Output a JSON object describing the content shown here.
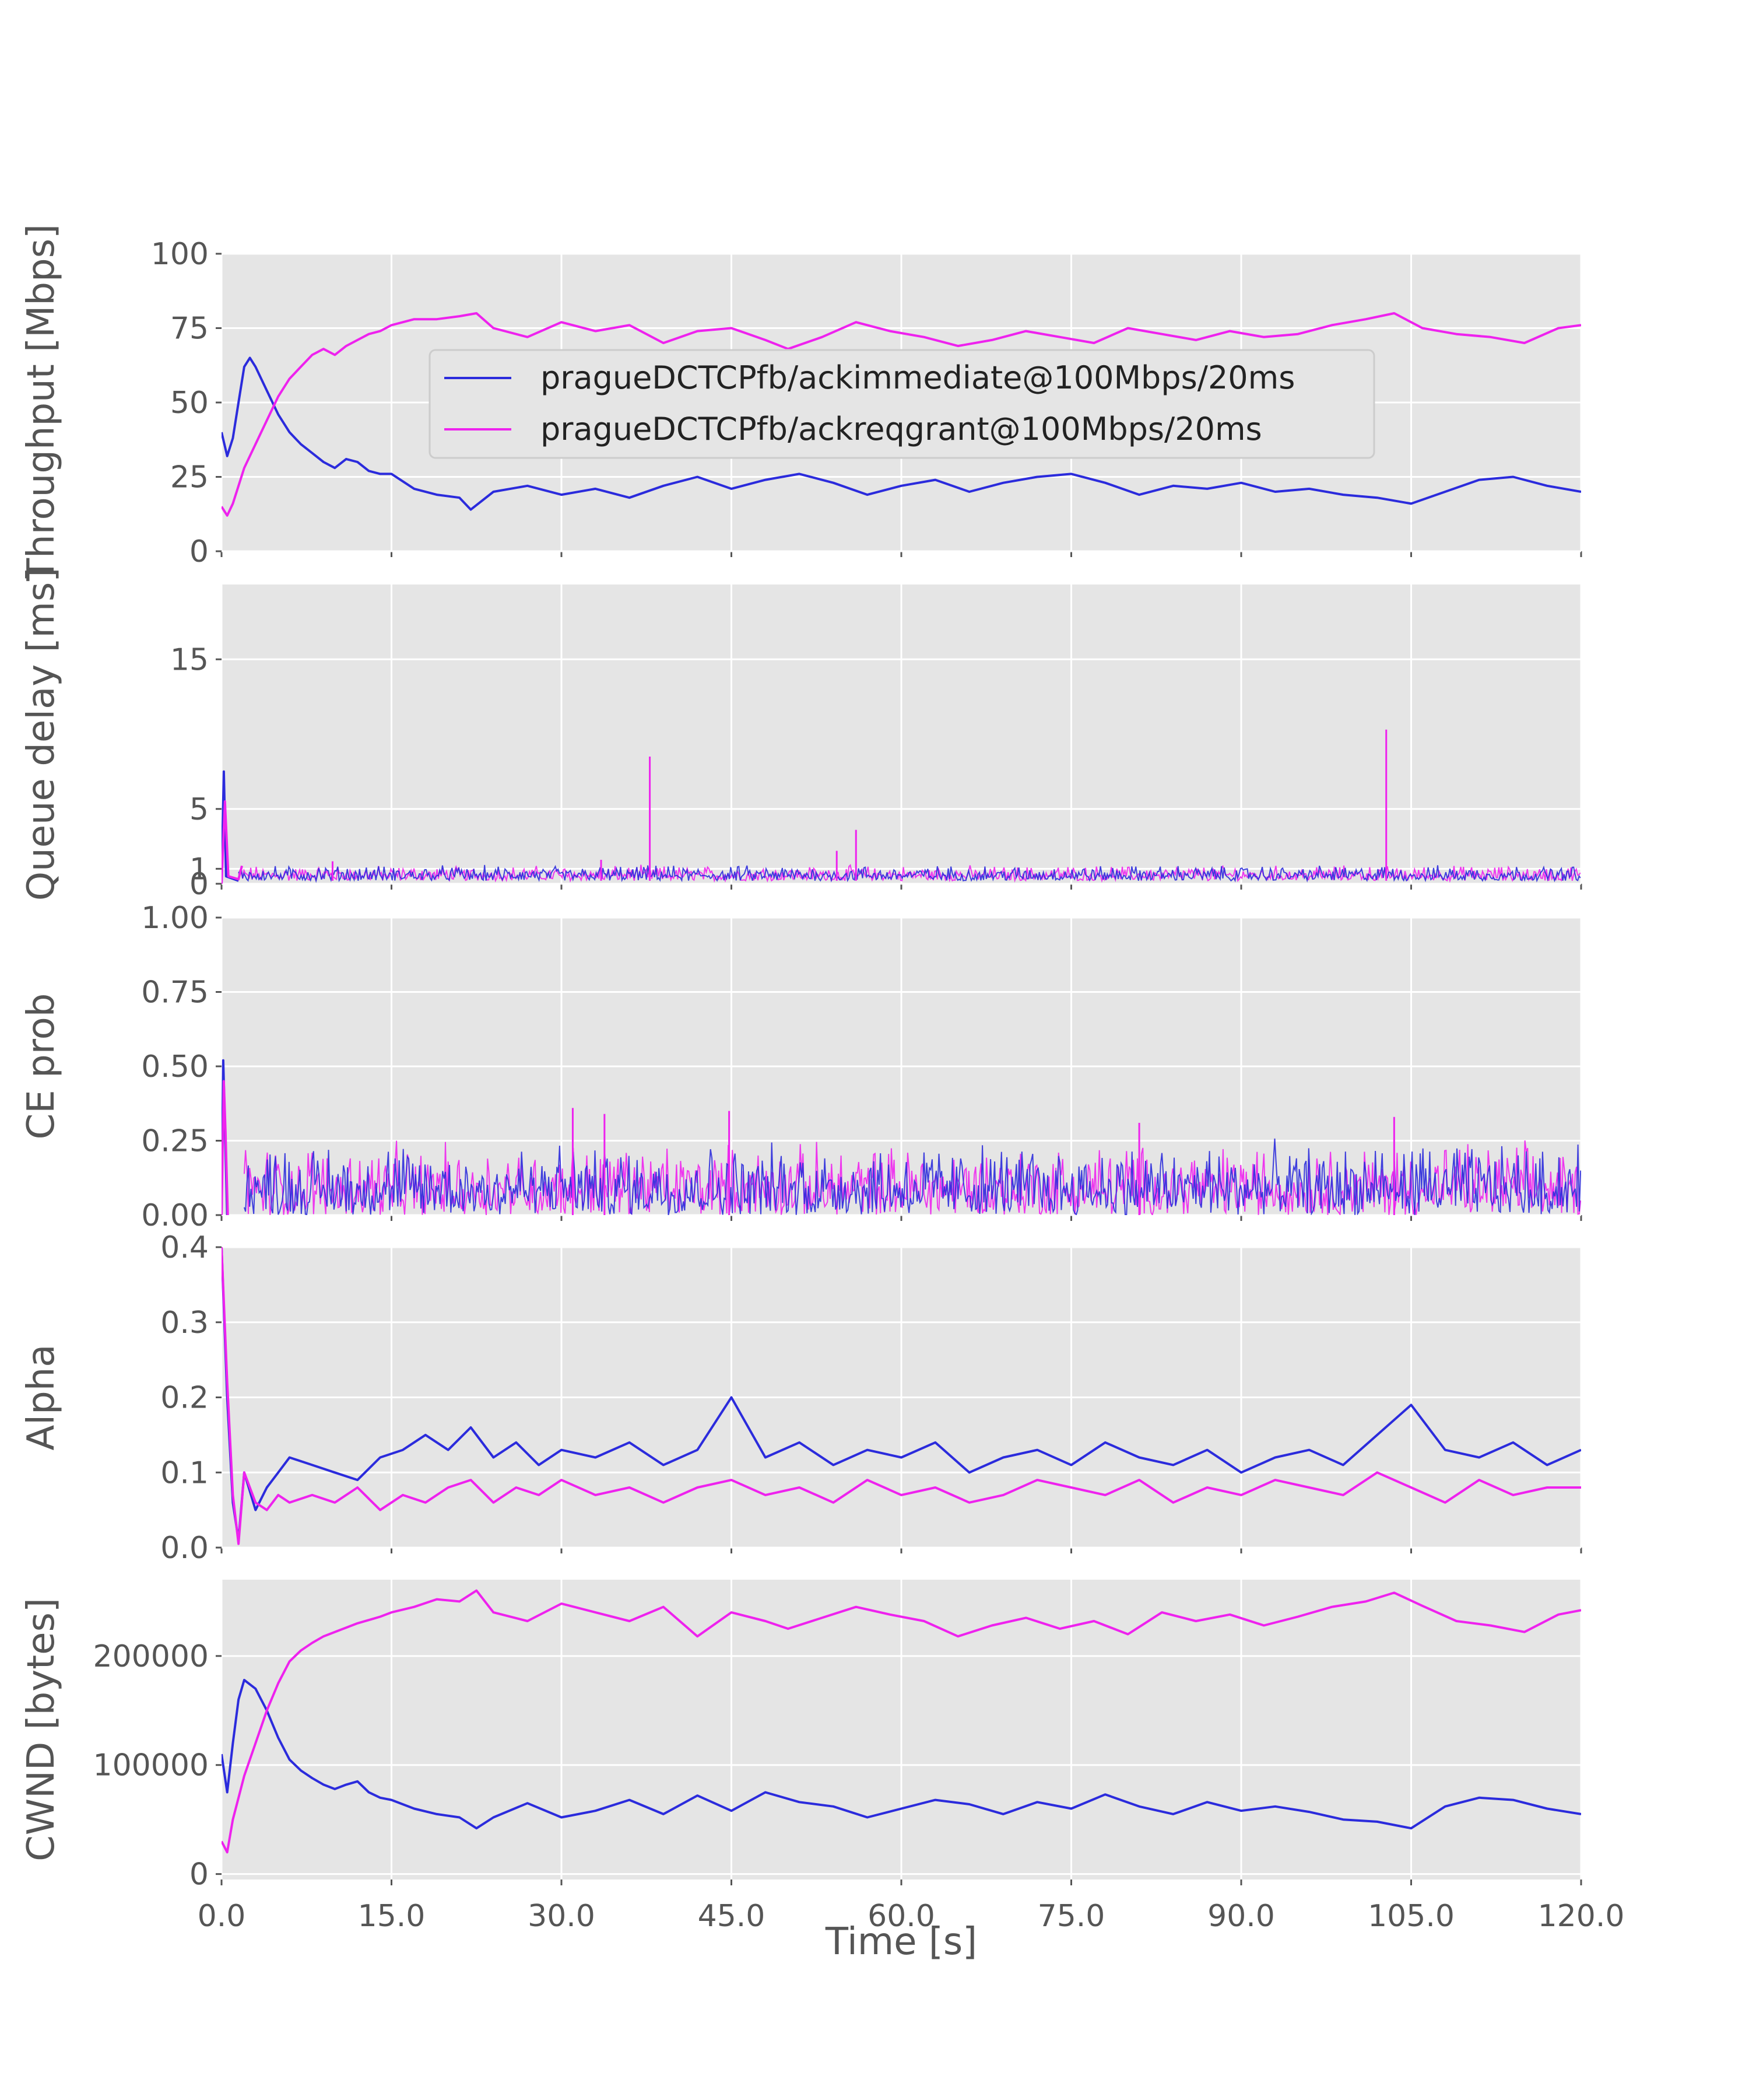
{
  "figure": {
    "xlabel": "Time [s]",
    "x_ticks": [
      "0.0",
      "15.0",
      "30.0",
      "45.0",
      "60.0",
      "75.0",
      "90.0",
      "105.0",
      "120.0"
    ],
    "xlim": [
      0,
      120
    ]
  },
  "legend": {
    "placement": "upper-center of top panel",
    "entries": [
      {
        "label": "pragueDCTCPfb/ackimmediate@100Mbps/20ms",
        "color": "#2b2bdc"
      },
      {
        "label": "pragueDCTCPfb/ackreqgrant@100Mbps/20ms",
        "color": "#ee22ee"
      }
    ]
  },
  "colors": {
    "series_1": "#2b2bdc",
    "series_2": "#ee22ee",
    "panel_bg": "#e5e5e5",
    "grid": "#ffffff",
    "text": "#555555"
  },
  "chart_data": [
    {
      "type": "line",
      "ylabel": "Throughput [Mbps]",
      "ylim": [
        0,
        100
      ],
      "yticks": [
        0,
        25,
        50,
        75,
        100
      ],
      "ytick_labels": [
        "0",
        "25",
        "50",
        "75",
        "100"
      ],
      "grid": true,
      "series": [
        {
          "name": "pragueDCTCPfb/ackimmediate@100Mbps/20ms",
          "x": [
            0,
            0.5,
            1,
            1.5,
            2,
            2.5,
            3,
            4,
            5,
            6,
            7,
            8,
            9,
            10,
            11,
            12,
            13,
            14,
            15,
            17,
            19,
            21,
            22,
            24,
            27,
            30,
            33,
            36,
            39,
            42,
            45,
            48,
            51,
            54,
            57,
            60,
            63,
            66,
            69,
            72,
            75,
            78,
            81,
            84,
            87,
            90,
            93,
            96,
            99,
            102,
            105,
            108,
            111,
            114,
            117,
            120
          ],
          "y": [
            40,
            32,
            38,
            50,
            62,
            65,
            62,
            54,
            46,
            40,
            36,
            33,
            30,
            28,
            31,
            30,
            27,
            26,
            26,
            21,
            19,
            18,
            14,
            20,
            22,
            19,
            21,
            18,
            22,
            25,
            21,
            24,
            26,
            23,
            19,
            22,
            24,
            20,
            23,
            25,
            26,
            23,
            19,
            22,
            21,
            23,
            20,
            21,
            19,
            18,
            16,
            20,
            24,
            25,
            22,
            20
          ]
        },
        {
          "name": "pragueDCTCPfb/ackreqgrant@100Mbps/20ms",
          "x": [
            0,
            0.5,
            1,
            2,
            3,
            4,
            5,
            6,
            7,
            8,
            9,
            10,
            11,
            12,
            13,
            14,
            15,
            17,
            19,
            21,
            22.5,
            24,
            27,
            30,
            33,
            36,
            39,
            42,
            45,
            48,
            50,
            53,
            56,
            59,
            62,
            65,
            68,
            71,
            74,
            77,
            80,
            83,
            86,
            89,
            92,
            95,
            98,
            101,
            103.5,
            106,
            109,
            112,
            115,
            118,
            120
          ],
          "y": [
            15,
            12,
            16,
            28,
            36,
            44,
            52,
            58,
            62,
            66,
            68,
            66,
            69,
            71,
            73,
            74,
            76,
            78,
            78,
            79,
            80,
            75,
            72,
            77,
            74,
            76,
            70,
            74,
            75,
            71,
            68,
            72,
            77,
            74,
            72,
            69,
            71,
            74,
            72,
            70,
            75,
            73,
            71,
            74,
            72,
            73,
            76,
            78,
            80,
            75,
            73,
            72,
            70,
            75,
            76
          ]
        }
      ]
    },
    {
      "type": "line",
      "ylabel": "Queue delay [ms]",
      "ylim": [
        0,
        20
      ],
      "yticks": [
        0,
        1,
        5,
        15
      ],
      "ytick_labels": [
        "0",
        "1",
        "5",
        "15"
      ],
      "grid": true,
      "noise_band": {
        "x_start": 1.5,
        "x_end": 120,
        "low": 0.2,
        "high": 1.3
      },
      "series": [
        {
          "name": "pragueDCTCPfb/ackimmediate@100Mbps/20ms",
          "x": [
            0,
            0.2,
            0.4,
            1.5
          ],
          "y": [
            0,
            7.5,
            0.5,
            0.2
          ]
        },
        {
          "name": "pragueDCTCPfb/ackreqgrant@100Mbps/20ms",
          "x": [
            0,
            0.3,
            0.6,
            1.5,
            1.8
          ],
          "y": [
            0,
            5.5,
            0.5,
            0.3,
            1.2
          ]
        }
      ],
      "spikes": [
        {
          "x": 37.8,
          "y": 8.5
        },
        {
          "x": 54.3,
          "y": 2.2
        },
        {
          "x": 56.0,
          "y": 3.6
        },
        {
          "x": 102.8,
          "y": 10.3
        },
        {
          "x": 9.8,
          "y": 1.5
        },
        {
          "x": 33.5,
          "y": 1.6
        }
      ]
    },
    {
      "type": "line",
      "ylabel": "CE prob",
      "ylim": [
        0,
        1
      ],
      "yticks": [
        0,
        0.25,
        0.5,
        0.75,
        1
      ],
      "ytick_labels": [
        "0.00",
        "0.25",
        "0.50",
        "0.75",
        "1.00"
      ],
      "grid": true,
      "noise_band": {
        "x_start": 2,
        "x_end": 120,
        "low": 0.0,
        "high": 0.26
      },
      "series": [
        {
          "name": "pragueDCTCPfb/ackimmediate@100Mbps/20ms",
          "x": [
            0,
            0.15,
            0.3,
            0.5
          ],
          "y": [
            0,
            0.52,
            0.3,
            0
          ]
        },
        {
          "name": "pragueDCTCPfb/ackreqgrant@100Mbps/20ms",
          "x": [
            0,
            0.2,
            0.35,
            0.55
          ],
          "y": [
            0,
            0.45,
            0.28,
            0
          ]
        }
      ],
      "spikes": [
        {
          "x": 31.0,
          "y": 0.36
        },
        {
          "x": 33.8,
          "y": 0.34
        },
        {
          "x": 44.8,
          "y": 0.35
        },
        {
          "x": 103.5,
          "y": 0.33
        },
        {
          "x": 81.0,
          "y": 0.31
        }
      ]
    },
    {
      "type": "line",
      "ylabel": "Alpha",
      "ylim": [
        0,
        0.4
      ],
      "yticks": [
        0,
        0.1,
        0.2,
        0.3,
        0.4
      ],
      "ytick_labels": [
        "0.0",
        "0.1",
        "0.2",
        "0.3",
        "0.4"
      ],
      "grid": true,
      "series": [
        {
          "name": "pragueDCTCPfb/ackimmediate@100Mbps/20ms",
          "x": [
            0,
            0.5,
            1,
            1.5,
            2,
            3,
            4,
            5,
            6,
            8,
            10,
            12,
            14,
            16,
            18,
            20,
            22,
            24,
            26,
            28,
            30,
            33,
            36,
            39,
            42,
            45,
            48,
            51,
            54,
            57,
            60,
            63,
            66,
            69,
            72,
            75,
            78,
            81,
            84,
            87,
            90,
            93,
            96,
            99,
            102,
            105,
            108,
            111,
            114,
            117,
            120
          ],
          "y": [
            0.4,
            0.2,
            0.06,
            0.01,
            0.1,
            0.05,
            0.08,
            0.1,
            0.12,
            0.11,
            0.1,
            0.09,
            0.12,
            0.13,
            0.15,
            0.13,
            0.16,
            0.12,
            0.14,
            0.11,
            0.13,
            0.12,
            0.14,
            0.11,
            0.13,
            0.2,
            0.12,
            0.14,
            0.11,
            0.13,
            0.12,
            0.14,
            0.1,
            0.12,
            0.13,
            0.11,
            0.14,
            0.12,
            0.11,
            0.13,
            0.1,
            0.12,
            0.13,
            0.11,
            0.15,
            0.19,
            0.13,
            0.12,
            0.14,
            0.11,
            0.13
          ]
        },
        {
          "name": "pragueDCTCPfb/ackreqgrant@100Mbps/20ms",
          "x": [
            0,
            0.5,
            1,
            1.5,
            2,
            3,
            4,
            5,
            6,
            8,
            10,
            12,
            14,
            16,
            18,
            20,
            22,
            24,
            26,
            28,
            30,
            33,
            36,
            39,
            42,
            45,
            48,
            51,
            54,
            57,
            60,
            63,
            66,
            69,
            72,
            75,
            78,
            81,
            84,
            87,
            90,
            93,
            96,
            99,
            102,
            105,
            108,
            111,
            114,
            117,
            120
          ],
          "y": [
            0.4,
            0.22,
            0.07,
            0.005,
            0.1,
            0.06,
            0.05,
            0.07,
            0.06,
            0.07,
            0.06,
            0.08,
            0.05,
            0.07,
            0.06,
            0.08,
            0.09,
            0.06,
            0.08,
            0.07,
            0.09,
            0.07,
            0.08,
            0.06,
            0.08,
            0.09,
            0.07,
            0.08,
            0.06,
            0.09,
            0.07,
            0.08,
            0.06,
            0.07,
            0.09,
            0.08,
            0.07,
            0.09,
            0.06,
            0.08,
            0.07,
            0.09,
            0.08,
            0.07,
            0.1,
            0.08,
            0.06,
            0.09,
            0.07,
            0.08,
            0.08
          ]
        }
      ]
    },
    {
      "type": "line",
      "ylabel": "CWND [bytes]",
      "ylim": [
        -5000,
        270000
      ],
      "yticks": [
        0,
        100000,
        200000
      ],
      "ytick_labels": [
        "0",
        "100000",
        "200000"
      ],
      "grid": true,
      "series": [
        {
          "name": "pragueDCTCPfb/ackimmediate@100Mbps/20ms",
          "x": [
            0,
            0.5,
            1,
            1.5,
            2,
            3,
            4,
            5,
            6,
            7,
            8,
            9,
            10,
            11,
            12,
            13,
            14,
            15,
            17,
            19,
            21,
            22.5,
            24,
            27,
            30,
            33,
            36,
            39,
            42,
            45,
            48,
            51,
            54,
            57,
            60,
            63,
            66,
            69,
            72,
            75,
            78,
            81,
            84,
            87,
            90,
            93,
            96,
            99,
            102,
            105,
            108,
            111,
            114,
            117,
            120
          ],
          "y": [
            110000,
            75000,
            120000,
            160000,
            178000,
            170000,
            150000,
            125000,
            105000,
            95000,
            88000,
            82000,
            78000,
            82000,
            85000,
            75000,
            70000,
            68000,
            60000,
            55000,
            52000,
            42000,
            52000,
            65000,
            52000,
            58000,
            68000,
            55000,
            72000,
            58000,
            75000,
            66000,
            62000,
            52000,
            60000,
            68000,
            64000,
            55000,
            66000,
            60000,
            73000,
            62000,
            55000,
            66000,
            58000,
            62000,
            57000,
            50000,
            48000,
            42000,
            62000,
            70000,
            68000,
            60000,
            55000
          ]
        },
        {
          "name": "pragueDCTCPfb/ackreqgrant@100Mbps/20ms",
          "x": [
            0,
            0.5,
            1,
            2,
            3,
            4,
            5,
            6,
            7,
            8,
            9,
            10,
            11,
            12,
            13,
            14,
            15,
            17,
            19,
            21,
            22.5,
            24,
            27,
            30,
            33,
            36,
            39,
            42,
            45,
            48,
            50,
            53,
            56,
            59,
            62,
            65,
            68,
            71,
            74,
            77,
            80,
            83,
            86,
            89,
            92,
            95,
            98,
            101,
            103.5,
            106,
            109,
            112,
            115,
            118,
            120
          ],
          "y": [
            30000,
            20000,
            50000,
            90000,
            120000,
            150000,
            175000,
            195000,
            205000,
            212000,
            218000,
            222000,
            226000,
            230000,
            233000,
            236000,
            240000,
            245000,
            252000,
            250000,
            260000,
            240000,
            232000,
            248000,
            240000,
            232000,
            245000,
            218000,
            240000,
            232000,
            225000,
            235000,
            245000,
            238000,
            232000,
            218000,
            228000,
            235000,
            225000,
            232000,
            220000,
            240000,
            232000,
            238000,
            228000,
            236000,
            245000,
            250000,
            258000,
            246000,
            232000,
            228000,
            222000,
            238000,
            242000
          ]
        }
      ]
    }
  ]
}
